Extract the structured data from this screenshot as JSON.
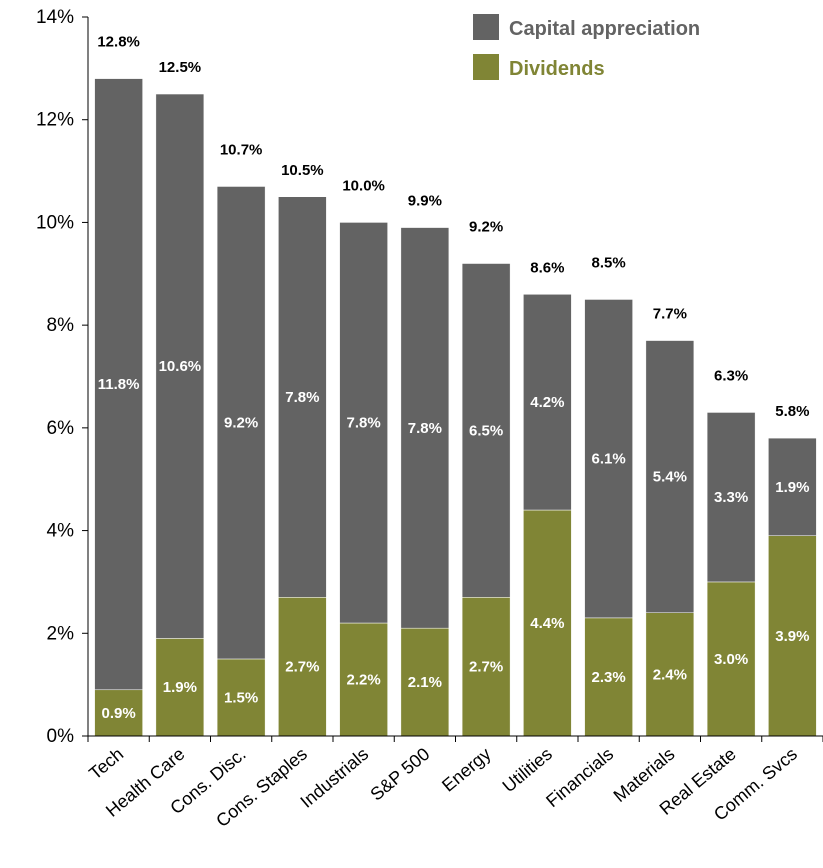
{
  "chart_data": {
    "type": "bar",
    "stacked": true,
    "categories": [
      "Tech",
      "Health Care",
      "Cons. Disc.",
      "Cons. Staples",
      "Industrials",
      "S&P 500",
      "Energy",
      "Utilities",
      "Financials",
      "Materials",
      "Real Estate",
      "Comm. Svcs"
    ],
    "series": [
      {
        "name": "Dividends",
        "color": "#808535",
        "values": [
          0.9,
          1.9,
          1.5,
          2.7,
          2.2,
          2.1,
          2.7,
          4.4,
          2.3,
          2.4,
          3.0,
          3.9
        ],
        "labels": [
          "0.9%",
          "1.9%",
          "1.5%",
          "2.7%",
          "2.2%",
          "2.1%",
          "2.7%",
          "4.4%",
          "2.3%",
          "2.4%",
          "3.0%",
          "3.9%"
        ]
      },
      {
        "name": "Capital appreciation",
        "color": "#636363",
        "values": [
          11.8,
          10.6,
          9.2,
          7.8,
          7.8,
          7.8,
          6.5,
          4.2,
          6.1,
          5.4,
          3.3,
          1.9
        ],
        "labels": [
          "11.8%",
          "10.6%",
          "9.2%",
          "7.8%",
          "7.8%",
          "7.8%",
          "6.5%",
          "4.2%",
          "6.1%",
          "5.4%",
          "3.3%",
          "1.9%"
        ]
      }
    ],
    "totals": [
      12.8,
      12.5,
      10.7,
      10.5,
      10.0,
      9.9,
      9.2,
      8.6,
      8.5,
      7.7,
      6.3,
      5.8
    ],
    "total_labels": [
      "12.8%",
      "12.5%",
      "10.7%",
      "10.5%",
      "10.0%",
      "9.9%",
      "9.2%",
      "8.6%",
      "8.5%",
      "7.7%",
      "6.3%",
      "5.8%"
    ],
    "y_ticks": [
      0,
      2,
      4,
      6,
      8,
      10,
      12,
      14
    ],
    "y_tick_labels": [
      "0%",
      "2%",
      "4%",
      "6%",
      "8%",
      "10%",
      "12%",
      "14%"
    ],
    "ylim": [
      0,
      14
    ],
    "grid": false,
    "legend_position": "top-right",
    "legend_order": [
      "Capital appreciation",
      "Dividends"
    ],
    "legend_text_colors": {
      "Capital appreciation": "#636363",
      "Dividends": "#808535"
    },
    "title": "",
    "xlabel": "",
    "ylabel": ""
  }
}
